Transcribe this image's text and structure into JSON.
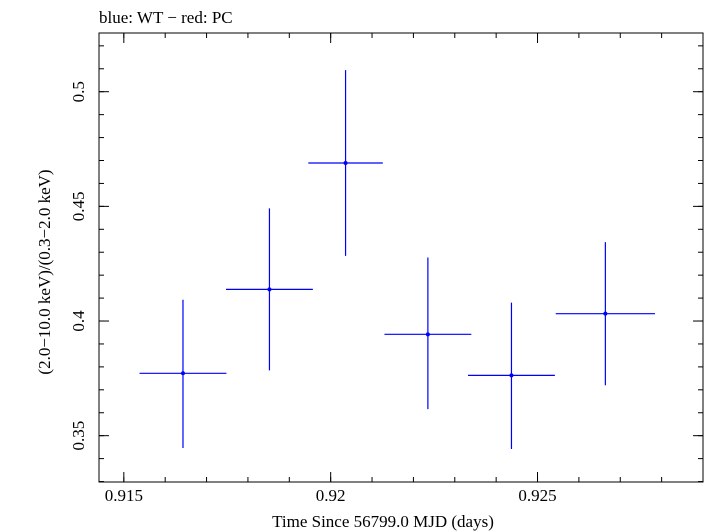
{
  "chart_data": {
    "type": "scatter",
    "title": "blue: WT − red: PC",
    "xlabel": "Time Since 56799.0 MJD (days)",
    "ylabel": "(2.0−10.0 keV)/(0.3−2.0 keV)",
    "xlim": [
      0.9144,
      0.929
    ],
    "ylim": [
      0.3298,
      0.5256
    ],
    "xticks": [
      {
        "value": 0.915,
        "label": "0.915"
      },
      {
        "value": 0.92,
        "label": "0.92"
      },
      {
        "value": 0.925,
        "label": "0.925"
      }
    ],
    "yticks": [
      {
        "value": 0.35,
        "label": "0.35"
      },
      {
        "value": 0.4,
        "label": "0.4"
      },
      {
        "value": 0.45,
        "label": "0.45"
      },
      {
        "value": 0.5,
        "label": "0.5"
      }
    ],
    "x_minor_step": 0.001,
    "y_minor_step": 0.01,
    "grid": false,
    "series": [
      {
        "color": "#0000ff",
        "points": [
          {
            "x": 0.91643,
            "xerr": 0.00105,
            "y": 0.3772,
            "yerr_low": 0.0326,
            "yerr_high": 0.0321
          },
          {
            "x": 0.91852,
            "xerr": 0.00105,
            "y": 0.4138,
            "yerr_low": 0.0353,
            "yerr_high": 0.0353
          },
          {
            "x": 0.92036,
            "xerr": 0.0009,
            "y": 0.4689,
            "yerr_low": 0.0405,
            "yerr_high": 0.0405
          },
          {
            "x": 0.92235,
            "xerr": 0.00105,
            "y": 0.3942,
            "yerr_low": 0.0326,
            "yerr_high": 0.0335
          },
          {
            "x": 0.92437,
            "xerr": 0.00105,
            "y": 0.3763,
            "yerr_low": 0.0321,
            "yerr_high": 0.0317
          },
          {
            "x": 0.92664,
            "xerr": 0.0012,
            "y": 0.4032,
            "yerr_low": 0.0312,
            "yerr_high": 0.0312
          }
        ]
      }
    ]
  }
}
